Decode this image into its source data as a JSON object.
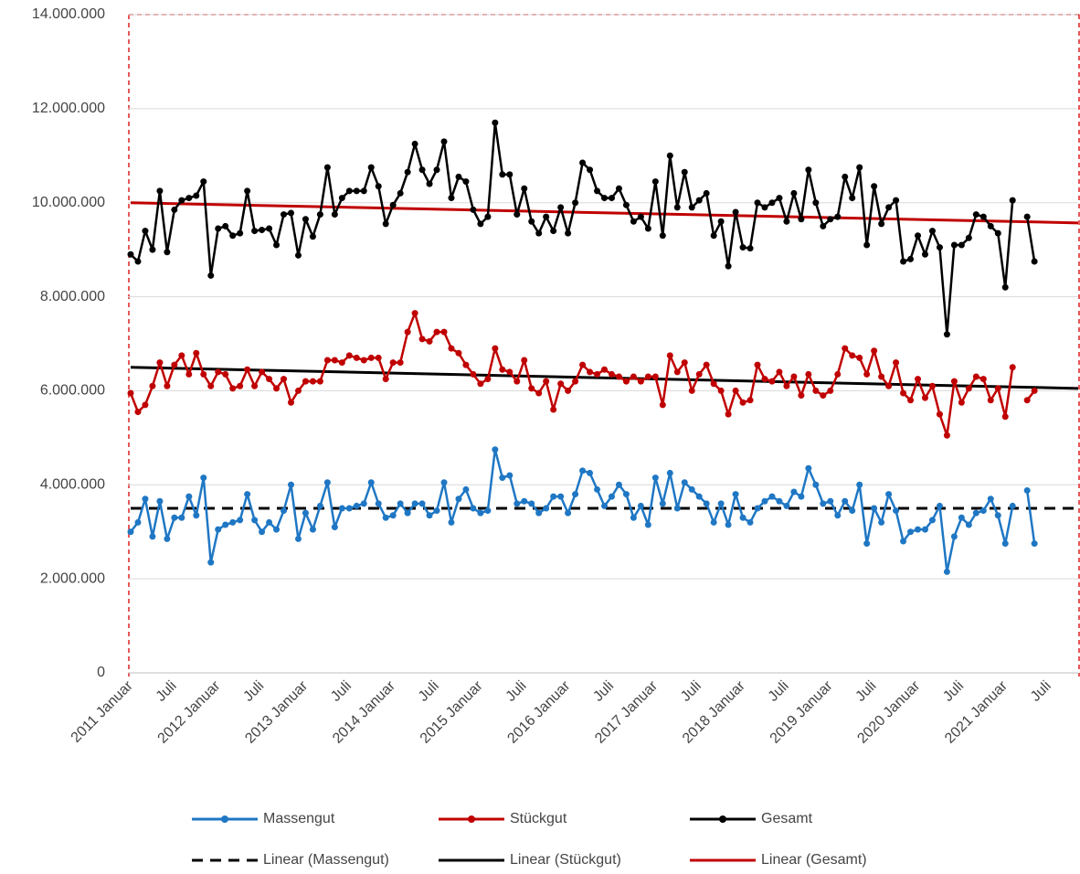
{
  "chart_data": {
    "type": "line",
    "categories": [
      "2011 Januar",
      null,
      null,
      null,
      null,
      null,
      "Juli",
      null,
      null,
      null,
      null,
      null,
      "2012 Januar",
      null,
      null,
      null,
      null,
      null,
      "Juli",
      null,
      null,
      null,
      null,
      null,
      "2013 Januar",
      null,
      null,
      null,
      null,
      null,
      "Juli",
      null,
      null,
      null,
      null,
      null,
      "2014 Januar",
      null,
      null,
      null,
      null,
      null,
      "Juli",
      null,
      null,
      null,
      null,
      null,
      "2015 Januar",
      null,
      null,
      null,
      null,
      null,
      "Juli",
      null,
      null,
      null,
      null,
      null,
      "2016 Januar",
      null,
      null,
      null,
      null,
      null,
      "Juli",
      null,
      null,
      null,
      null,
      null,
      "2017 Januar",
      null,
      null,
      null,
      null,
      null,
      "Juli",
      null,
      null,
      null,
      null,
      null,
      "2018 Januar",
      null,
      null,
      null,
      null,
      null,
      "Juli",
      null,
      null,
      null,
      null,
      null,
      "2019 Januar",
      null,
      null,
      null,
      null,
      null,
      "Juli",
      null,
      null,
      null,
      null,
      null,
      "2020 Januar",
      null,
      null,
      null,
      null,
      null,
      "Juli",
      null,
      null,
      null,
      null,
      null,
      "2021 Januar",
      null,
      null,
      null,
      null,
      null,
      "Juli",
      null,
      null,
      null,
      null
    ],
    "series": [
      {
        "name": "Massengut",
        "color": "#1f77c4",
        "values": [
          3000000,
          3200000,
          3700000,
          2900000,
          3650000,
          2850000,
          3300000,
          3300000,
          3750000,
          3350000,
          4150000,
          2350000,
          3050000,
          3150000,
          3200000,
          3250000,
          3800000,
          3250000,
          3000000,
          3200000,
          3050000,
          3450000,
          4000000,
          2850000,
          3400000,
          3050000,
          3550000,
          4050000,
          3100000,
          3500000,
          3500000,
          3550000,
          3600000,
          4050000,
          3600000,
          3300000,
          3350000,
          3600000,
          3400000,
          3600000,
          3600000,
          3350000,
          3450000,
          4050000,
          3200000,
          3700000,
          3900000,
          3500000,
          3400000,
          3450000,
          4750000,
          4150000,
          4200000,
          3600000,
          3650000,
          3600000,
          3400000,
          3500000,
          3750000,
          3750000,
          3400000,
          3800000,
          4300000,
          4250000,
          3900000,
          3550000,
          3750000,
          4000000,
          3800000,
          3300000,
          3550000,
          3150000,
          4150000,
          3600000,
          4250000,
          3500000,
          4050000,
          3900000,
          3750000,
          3600000,
          3200000,
          3600000,
          3150000,
          3800000,
          3300000,
          3200000,
          3500000,
          3650000,
          3750000,
          3650000,
          3550000,
          3850000,
          3750000,
          4350000,
          4000000,
          3600000,
          3650000,
          3350000,
          3650000,
          3450000,
          4000000,
          2750000,
          3500000,
          3200000,
          3800000,
          3450000,
          2800000,
          3000000,
          3050000,
          3050000,
          3250000,
          3550000,
          2150000,
          2900000,
          3300000,
          3150000,
          3400000,
          3450000,
          3700000,
          3350000,
          2750000,
          3550000,
          null,
          3880000,
          2750000,
          null,
          null,
          null,
          null,
          null,
          null
        ]
      },
      {
        "name": "Stückgut",
        "color": "#c00000",
        "values": [
          5950000,
          5550000,
          5700000,
          6100000,
          6600000,
          6100000,
          6550000,
          6750000,
          6350000,
          6800000,
          6350000,
          6100000,
          6400000,
          6350000,
          6050000,
          6100000,
          6450000,
          6100000,
          6400000,
          6250000,
          6050000,
          6250000,
          5750000,
          6000000,
          6200000,
          6200000,
          6200000,
          6650000,
          6650000,
          6600000,
          6750000,
          6700000,
          6650000,
          6700000,
          6700000,
          6250000,
          6600000,
          6600000,
          7250000,
          7650000,
          7100000,
          7050000,
          7250000,
          7250000,
          6900000,
          6800000,
          6550000,
          6350000,
          6150000,
          6250000,
          6900000,
          6450000,
          6400000,
          6200000,
          6650000,
          6050000,
          5950000,
          6200000,
          5600000,
          6150000,
          6000000,
          6200000,
          6550000,
          6400000,
          6350000,
          6450000,
          6350000,
          6300000,
          6200000,
          6300000,
          6200000,
          6300000,
          6300000,
          5700000,
          6750000,
          6400000,
          6600000,
          6000000,
          6350000,
          6550000,
          6150000,
          6000000,
          5500000,
          6000000,
          5750000,
          5800000,
          6550000,
          6250000,
          6200000,
          6400000,
          6100000,
          6300000,
          5900000,
          6350000,
          6000000,
          5900000,
          6000000,
          6350000,
          6900000,
          6750000,
          6700000,
          6350000,
          6850000,
          6300000,
          6100000,
          6600000,
          5950000,
          5800000,
          6250000,
          5850000,
          6100000,
          5500000,
          5050000,
          6200000,
          5750000,
          6050000,
          6300000,
          6250000,
          5800000,
          6050000,
          5450000,
          6500000,
          null,
          5800000,
          6000000,
          null,
          null,
          null,
          null,
          null,
          null
        ]
      },
      {
        "name": "Gesamt",
        "color": "#000000",
        "values": [
          8900000,
          8750000,
          9400000,
          9000000,
          10250000,
          8950000,
          9850000,
          10050000,
          10100000,
          10150000,
          10450000,
          8450000,
          9450000,
          9500000,
          9300000,
          9350000,
          10250000,
          9400000,
          9420000,
          9450000,
          9100000,
          9750000,
          9780000,
          8880000,
          9650000,
          9280000,
          9750000,
          10750000,
          9750000,
          10100000,
          10250000,
          10250000,
          10250000,
          10750000,
          10350000,
          9550000,
          9950000,
          10200000,
          10650000,
          11250000,
          10700000,
          10400000,
          10700000,
          11300000,
          10100000,
          10550000,
          10450000,
          9850000,
          9550000,
          9700000,
          11700000,
          10600000,
          10600000,
          9750000,
          10300000,
          9600000,
          9350000,
          9700000,
          9400000,
          9900000,
          9350000,
          10000000,
          10850000,
          10700000,
          10250000,
          10100000,
          10100000,
          10300000,
          9950000,
          9600000,
          9700000,
          9450000,
          10450000,
          9300000,
          11000000,
          9900000,
          10650000,
          9900000,
          10050000,
          10200000,
          9300000,
          9600000,
          8650000,
          9800000,
          9050000,
          9030000,
          10000000,
          9900000,
          10000000,
          10100000,
          9600000,
          10200000,
          9650000,
          10700000,
          10000000,
          9500000,
          9650000,
          9700000,
          10550000,
          10100000,
          10750000,
          9100000,
          10350000,
          9550000,
          9900000,
          10050000,
          8750000,
          8800000,
          9300000,
          8900000,
          9400000,
          9050000,
          7200000,
          9100000,
          9100000,
          9250000,
          9750000,
          9700000,
          9500000,
          9350000,
          8200000,
          10050000,
          null,
          9700000,
          8750000,
          null,
          null,
          null,
          null,
          null,
          null
        ]
      }
    ],
    "trendlines": [
      {
        "name": "Linear (Massengut)",
        "color": "#000000",
        "dash": true,
        "values": [
          3500000,
          3500000
        ]
      },
      {
        "name": "Linear (Stückgut)",
        "color": "#000000",
        "dash": false,
        "values": [
          6500000,
          6050000
        ]
      },
      {
        "name": "Linear (Gesamt)",
        "color": "#c00000",
        "dash": false,
        "values": [
          10000000,
          9570000
        ]
      }
    ],
    "ylim": [
      0,
      14000000
    ],
    "yticks": [
      0,
      {
        "value": 2000000,
        "label": "2.000.000"
      },
      {
        "value": 4000000,
        "label": "4.000.000"
      },
      {
        "value": 6000000,
        "label": "6.000.000"
      },
      {
        "value": 8000000,
        "label": "8.000.000"
      },
      {
        "value": 10000000,
        "label": "10.000.000"
      },
      {
        "value": 12000000,
        "label": "12.000.000"
      },
      {
        "value": 14000000,
        "label": "14.000.000"
      }
    ],
    "grid": true
  }
}
